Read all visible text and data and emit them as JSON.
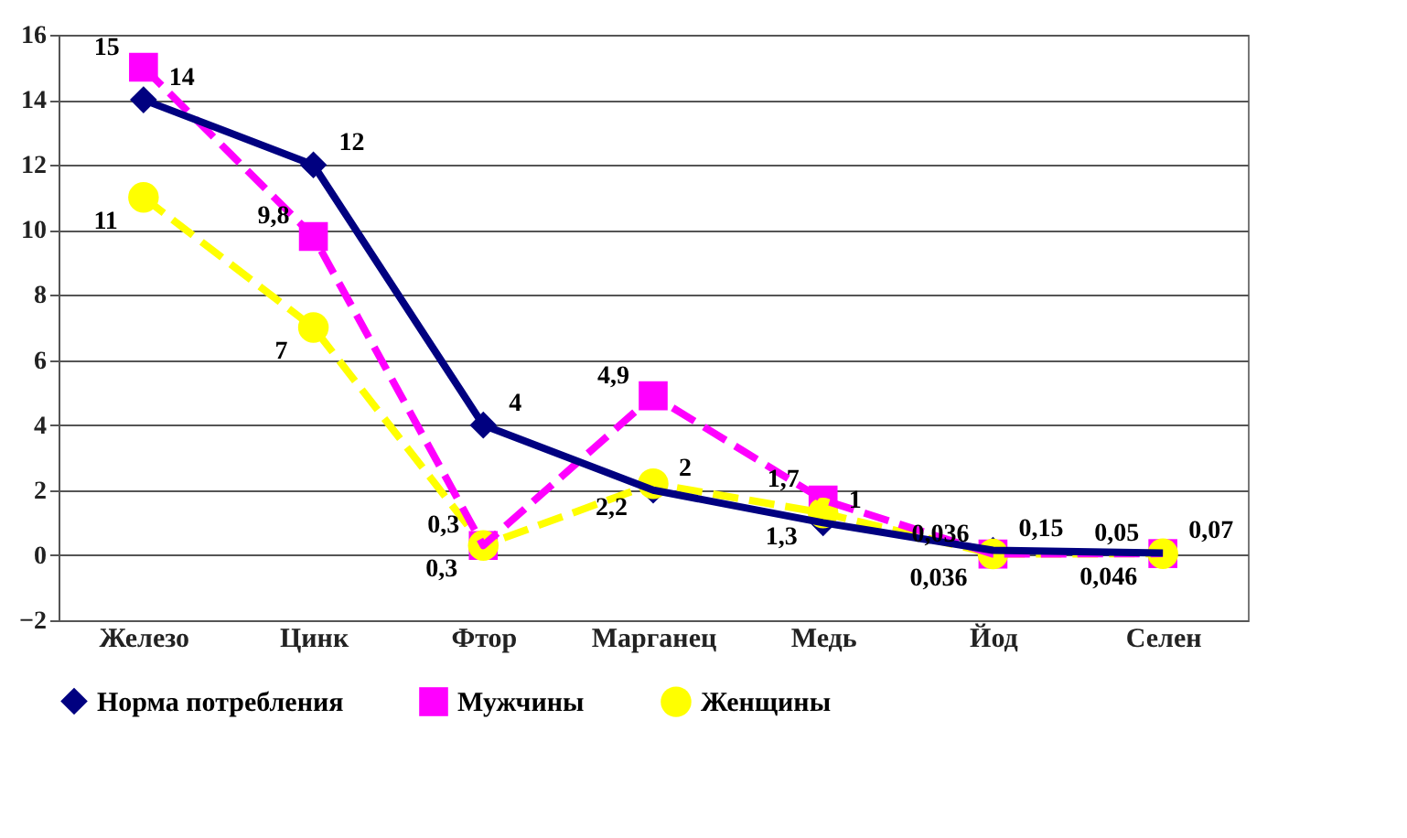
{
  "chart_data": {
    "type": "line",
    "categories": [
      "Железо",
      "Цинк",
      "Фтор",
      "Марганец",
      "Медь",
      "Йод",
      "Селен"
    ],
    "series": [
      {
        "name": "Норма потребления",
        "color": "#000080",
        "marker": "diamond",
        "line_style": "solid",
        "values": [
          14,
          12,
          4,
          2,
          1,
          0.15,
          0.07
        ],
        "value_labels": [
          "14",
          "12",
          "4",
          "2",
          "1",
          "0,15",
          "0,07"
        ]
      },
      {
        "name": "Мужчины",
        "color": "#ff00ff",
        "marker": "square",
        "line_style": "dashed",
        "values": [
          15,
          9.8,
          0.3,
          4.9,
          1.7,
          0.036,
          0.05
        ],
        "value_labels": [
          "15",
          "9,8",
          "0,3",
          "4,9",
          "1,7",
          "0,036",
          "0,05"
        ]
      },
      {
        "name": "Женщины",
        "color": "#ffff00",
        "marker": "circle",
        "line_style": "dashed",
        "values": [
          11,
          7,
          0.3,
          2.2,
          1.3,
          0.036,
          0.046
        ],
        "value_labels": [
          "11",
          "7",
          "0,3",
          "2,2",
          "1,3",
          "0,036",
          "0,046"
        ]
      }
    ],
    "ylim": [
      -2,
      16
    ],
    "yticks": [
      -2,
      0,
      2,
      4,
      6,
      8,
      10,
      12,
      14,
      16
    ],
    "grid": "y",
    "legend": "bottom"
  }
}
